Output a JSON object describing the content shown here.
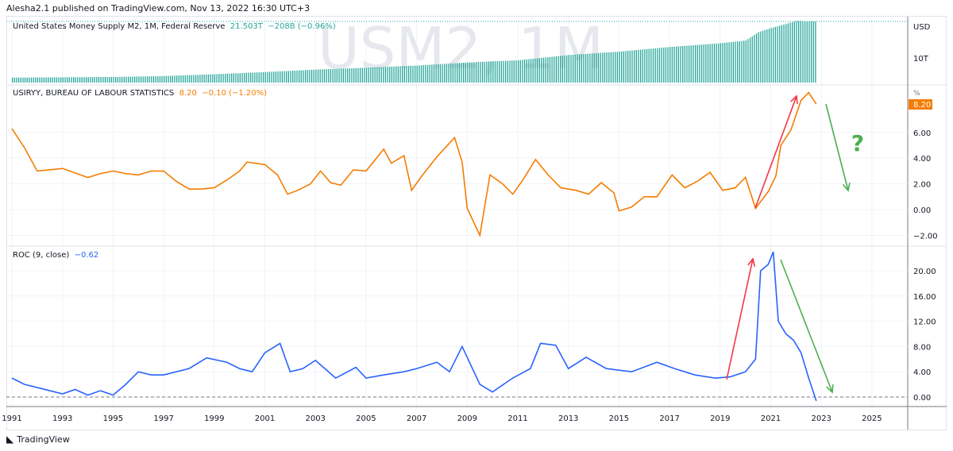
{
  "header": {
    "published": "Alesha2.1 published on TradingView.com, Nov 13, 2022 16:30 UTC+3"
  },
  "watermark": "USM2, 1M",
  "footer": {
    "brand": "TradingView",
    "logo_icon": "tradingview-logo-icon"
  },
  "colors": {
    "m2": "#26a69a",
    "cpi": "#f57c00",
    "roc": "#2962ff",
    "up_arrow": "#f23645",
    "down_arrow": "#4caf50"
  },
  "chart_data": [
    {
      "type": "bar",
      "pane": "top",
      "name": "United States Money Supply M2, 1M, Federal Reserve",
      "value": "21.503T",
      "change": "−208B (−0.96%)",
      "unit_label": "USD",
      "ytick_labels": [
        "10T"
      ],
      "x": [
        1991,
        1993,
        1995,
        1997,
        1999,
        2001,
        2003,
        2005,
        2007,
        2009,
        2011,
        2013,
        2015,
        2017,
        2019,
        2020,
        2020.5,
        2021,
        2022,
        2022.8
      ],
      "values": [
        3.4,
        3.5,
        3.6,
        3.9,
        4.5,
        5.2,
        6.0,
        6.6,
        7.3,
        8.3,
        9.0,
        10.7,
        11.8,
        13.3,
        14.5,
        15.4,
        18.1,
        19.4,
        21.7,
        21.5
      ]
    },
    {
      "type": "line",
      "pane": "middle",
      "name": "USIRYY, BUREAU OF LABOUR STATISTICS",
      "value": "8.20",
      "change": "−0.10 (−1.20%)",
      "unit_label": "%",
      "ylim": [
        -2.5,
        9.5
      ],
      "yticks": [
        "6.00",
        "4.00",
        "2.00",
        "0.00",
        "−2.00"
      ],
      "last_label": "8.20",
      "x": [
        1991,
        1991.5,
        1992,
        1992.5,
        1993,
        1994,
        1994.5,
        1995,
        1995.5,
        1996,
        1996.5,
        1997,
        1997.5,
        1998,
        1998.5,
        1999,
        1999.5,
        2000,
        2000.3,
        2001,
        2001.5,
        2001.9,
        2002.3,
        2002.8,
        2003.2,
        2003.6,
        2004,
        2004.5,
        2005,
        2005.7,
        2006,
        2006.5,
        2006.8,
        2007.2,
        2007.8,
        2008.5,
        2008.8,
        2009,
        2009.5,
        2009.9,
        2010.4,
        2010.8,
        2011.2,
        2011.7,
        2012.2,
        2012.7,
        2013.3,
        2013.8,
        2014.3,
        2014.8,
        2015,
        2015.5,
        2016,
        2016.5,
        2017.1,
        2017.6,
        2018.1,
        2018.6,
        2019.1,
        2019.6,
        2020,
        2020.4,
        2020.9,
        2021.2,
        2021.4,
        2021.8,
        2022.2,
        2022.5,
        2022.8
      ],
      "values": [
        6.3,
        4.8,
        3.0,
        3.1,
        3.2,
        2.5,
        2.8,
        3.0,
        2.8,
        2.7,
        3.0,
        3.0,
        2.2,
        1.6,
        1.6,
        1.7,
        2.3,
        3.0,
        3.7,
        3.5,
        2.7,
        1.2,
        1.5,
        2.0,
        3.0,
        2.1,
        1.9,
        3.1,
        3.0,
        4.7,
        3.6,
        4.2,
        1.5,
        2.6,
        4.1,
        5.6,
        3.7,
        0.1,
        -2.0,
        2.7,
        2.0,
        1.2,
        2.3,
        3.9,
        2.7,
        1.7,
        1.5,
        1.2,
        2.1,
        1.3,
        -0.1,
        0.2,
        1.0,
        1.0,
        2.7,
        1.7,
        2.2,
        2.9,
        1.5,
        1.7,
        2.5,
        0.1,
        1.4,
        2.6,
        5.0,
        6.2,
        8.5,
        9.1,
        8.2
      ]
    },
    {
      "type": "line",
      "pane": "bottom",
      "name": "ROC (9, close)",
      "value": "−0.62",
      "ylim": [
        -1,
        24
      ],
      "yticks": [
        "20.00",
        "16.00",
        "12.00",
        "8.00",
        "4.00",
        "0.00"
      ],
      "x": [
        1991,
        1991.5,
        1992,
        1992.5,
        1993,
        1993.5,
        1994,
        1994.5,
        1995,
        1995.5,
        1996,
        1996.5,
        1997,
        1998,
        1998.7,
        1999.5,
        2000,
        2000.5,
        2001,
        2001.6,
        2002,
        2002.5,
        2003,
        2003.8,
        2004.6,
        2005,
        2005.7,
        2006.5,
        2007,
        2007.8,
        2008.3,
        2008.8,
        2009.5,
        2010,
        2010.8,
        2011.5,
        2011.9,
        2012.5,
        2013,
        2013.7,
        2014.5,
        2015.5,
        2016.5,
        2017.2,
        2018,
        2018.8,
        2019.4,
        2020,
        2020.4,
        2020.6,
        2020.9,
        2021.1,
        2021.3,
        2021.6,
        2021.9,
        2022.2,
        2022.5,
        2022.8
      ],
      "values": [
        3.0,
        2.0,
        1.5,
        1.0,
        0.5,
        1.2,
        0.3,
        1.0,
        0.3,
        2.0,
        4.0,
        3.5,
        3.5,
        4.5,
        6.2,
        5.5,
        4.5,
        4.0,
        7.0,
        8.5,
        4.0,
        4.5,
        5.8,
        3.0,
        4.7,
        3.0,
        3.5,
        4.0,
        4.5,
        5.5,
        4.0,
        8.0,
        2.0,
        0.8,
        3.0,
        4.5,
        8.5,
        8.2,
        4.5,
        6.3,
        4.5,
        4.0,
        5.5,
        4.5,
        3.5,
        3.0,
        3.2,
        4.0,
        6.0,
        20.0,
        21.0,
        23.0,
        12.0,
        10.0,
        9.0,
        7.0,
        3.0,
        -0.62
      ]
    }
  ],
  "xaxis": {
    "ticks": [
      "1991",
      "1993",
      "1995",
      "1997",
      "1999",
      "2001",
      "2003",
      "2005",
      "2007",
      "2009",
      "2011",
      "2013",
      "2015",
      "2017",
      "2019",
      "2021",
      "2023",
      "2025"
    ]
  },
  "annotations": {
    "question": "?"
  }
}
